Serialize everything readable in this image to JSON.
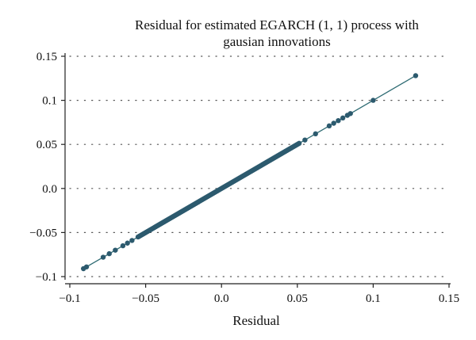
{
  "chart_data": {
    "type": "scatter",
    "title_lines": [
      "Residual for estimated EGARCH (1, 1) process with",
      "gausian innovations"
    ],
    "xlabel": "Residual",
    "ylabel": "",
    "xlim": [
      -0.1,
      0.15
    ],
    "ylim": [
      -0.1,
      0.15
    ],
    "x_ticks": [
      -0.1,
      -0.05,
      0.0,
      0.05,
      0.1,
      0.15
    ],
    "x_tick_labels": [
      "−0.1",
      "−0.05",
      "0.0",
      "0.05",
      "0.1",
      "0.15"
    ],
    "y_ticks": [
      -0.1,
      -0.05,
      0.0,
      0.05,
      0.1,
      0.15
    ],
    "y_tick_labels": [
      "−0.1",
      "−0.05",
      "0.0",
      "0.05",
      "0.1",
      "0.15"
    ],
    "grid": "horizontal dotted",
    "legend": "none",
    "line": {
      "x": [
        -0.091,
        0.128
      ],
      "y": [
        -0.091,
        0.128
      ]
    },
    "dense_range": [
      -0.055,
      0.052
    ],
    "sparse_points": [
      -0.091,
      -0.089,
      -0.078,
      -0.074,
      -0.07,
      -0.065,
      -0.062,
      -0.059,
      0.055,
      0.062,
      0.071,
      0.074,
      0.077,
      0.08,
      0.083,
      0.085,
      0.1,
      0.128
    ],
    "colors": {
      "point": "#2c5a6e",
      "line": "#2e6b73",
      "grid": "#555555",
      "axis": "#222222"
    }
  }
}
